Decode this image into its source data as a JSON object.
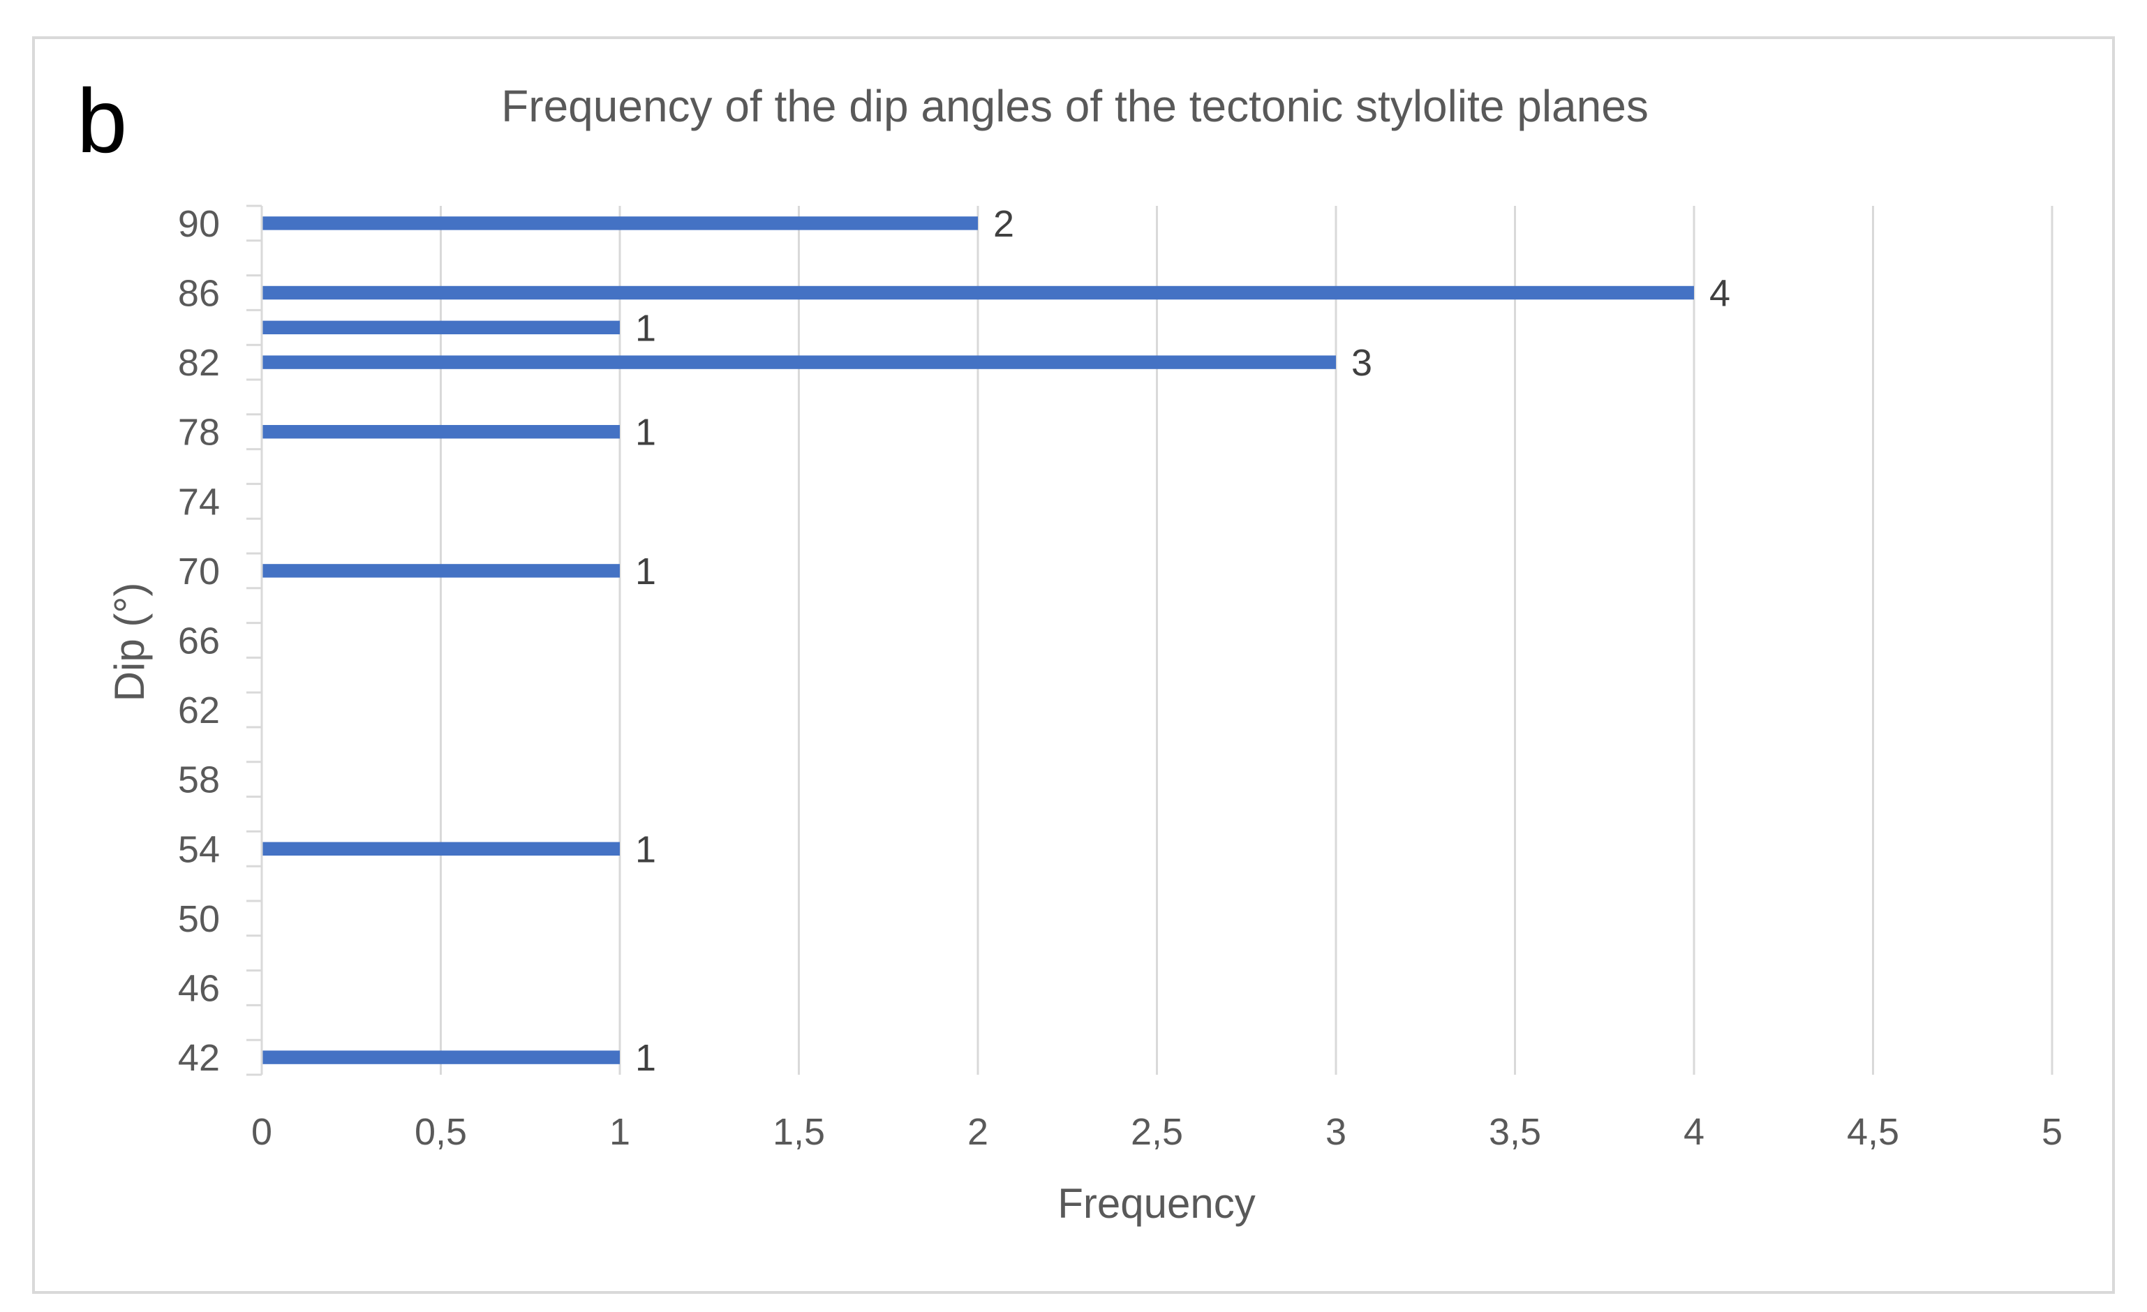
{
  "panel_label": "b",
  "chart_data": {
    "type": "bar",
    "orientation": "horizontal",
    "title": "Frequency of the dip angles of the tectonic stylolite planes",
    "xlabel": "Frequency",
    "ylabel": "Dip (°)",
    "xlim": [
      0,
      5
    ],
    "x_ticks": [
      "0",
      "0,5",
      "1",
      "1,5",
      "2",
      "2,5",
      "3",
      "3,5",
      "4",
      "4,5",
      "5"
    ],
    "ylim": [
      41,
      91
    ],
    "y_ticks": [
      42,
      46,
      50,
      54,
      58,
      62,
      66,
      70,
      74,
      78,
      82,
      86,
      90
    ],
    "grid": "vertical",
    "bar_color": "#4472C4",
    "bars": [
      {
        "dip": 90,
        "value": 2,
        "label": "2"
      },
      {
        "dip": 86,
        "value": 4,
        "label": "4"
      },
      {
        "dip": 84,
        "value": 1,
        "label": "1"
      },
      {
        "dip": 82,
        "value": 3,
        "label": "3"
      },
      {
        "dip": 78,
        "value": 1,
        "label": "1"
      },
      {
        "dip": 70,
        "value": 1,
        "label": "1"
      },
      {
        "dip": 54,
        "value": 1,
        "label": "1"
      },
      {
        "dip": 42,
        "value": 1,
        "label": "1"
      }
    ]
  }
}
